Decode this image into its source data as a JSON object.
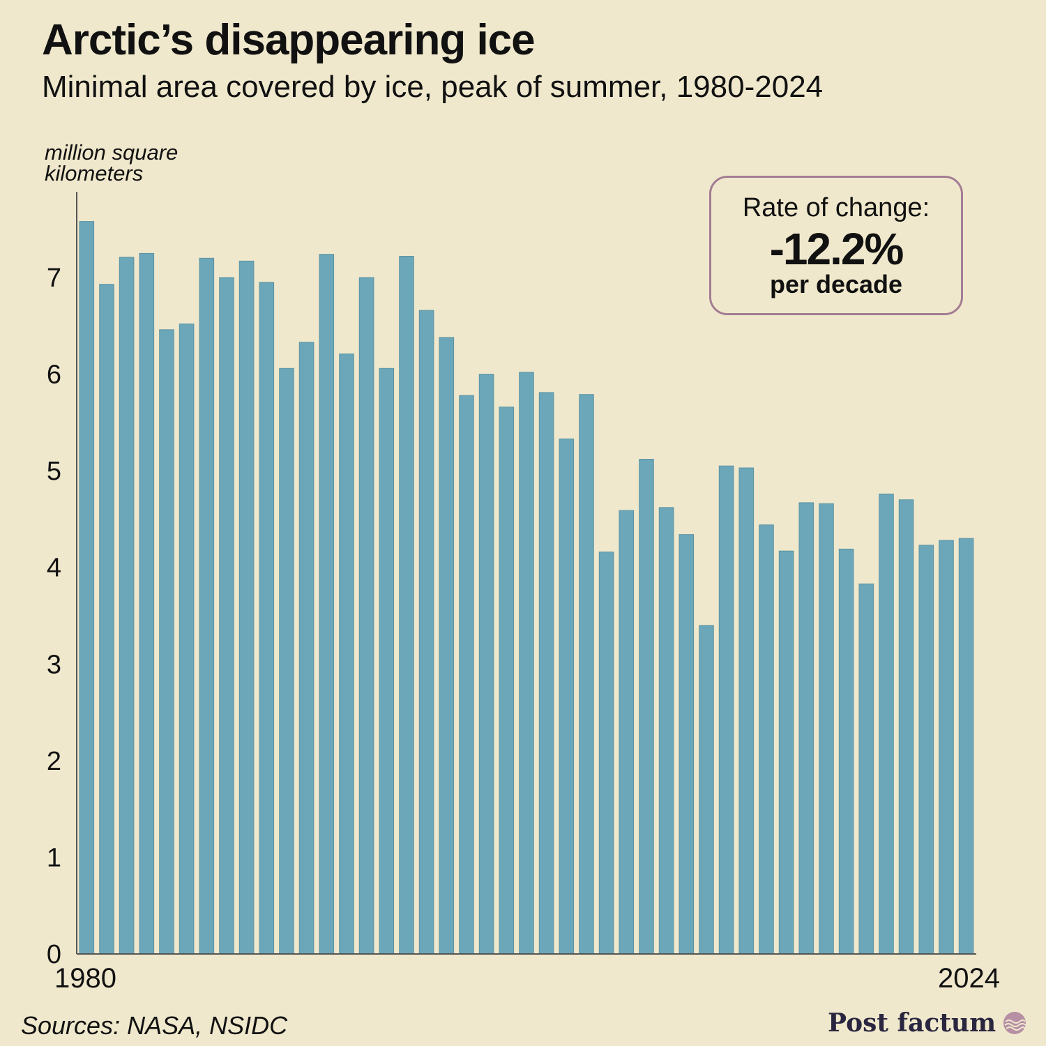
{
  "header": {
    "title": "Arctic’s disappearing ice",
    "subtitle": "Minimal area covered by ice, peak of summer, 1980-2024"
  },
  "annotation": {
    "label": "Rate of change:",
    "value": "-12.2%",
    "unit": "per decade"
  },
  "footer": {
    "source": "Sources: NASA, NSIDC",
    "brand": "Post factum"
  },
  "colors": {
    "background": "#EFE8CC",
    "bar": "#6BA7B9",
    "bar_edge": "#5C93A4",
    "annotation_border": "#A47D94",
    "axis": "#555555"
  },
  "chart_data": {
    "type": "bar",
    "ylabel": "million square kilometers",
    "ylim": [
      0,
      7.8
    ],
    "yticks": [
      0,
      1,
      2,
      3,
      4,
      5,
      6,
      7
    ],
    "x_tick_labels": [
      "1980",
      "2024"
    ],
    "categories": [
      1980,
      1981,
      1982,
      1983,
      1984,
      1985,
      1986,
      1987,
      1988,
      1989,
      1990,
      1991,
      1992,
      1993,
      1994,
      1995,
      1996,
      1997,
      1998,
      1999,
      2000,
      2001,
      2002,
      2003,
      2004,
      2005,
      2006,
      2007,
      2008,
      2009,
      2010,
      2011,
      2012,
      2013,
      2014,
      2015,
      2016,
      2017,
      2018,
      2019,
      2020,
      2021,
      2022,
      2023,
      2024
    ],
    "values": [
      7.58,
      6.93,
      7.21,
      7.25,
      6.46,
      6.52,
      7.2,
      7.0,
      7.17,
      6.95,
      6.06,
      6.33,
      7.24,
      6.21,
      7.0,
      6.06,
      7.22,
      6.66,
      6.38,
      5.78,
      6.0,
      5.66,
      6.02,
      5.81,
      5.33,
      5.79,
      4.16,
      4.59,
      5.12,
      4.62,
      4.34,
      3.4,
      5.05,
      5.03,
      4.44,
      4.17,
      4.67,
      4.66,
      4.19,
      3.83,
      4.76,
      4.7,
      4.23,
      4.28,
      4.3
    ],
    "grid": false,
    "legend": "none"
  }
}
